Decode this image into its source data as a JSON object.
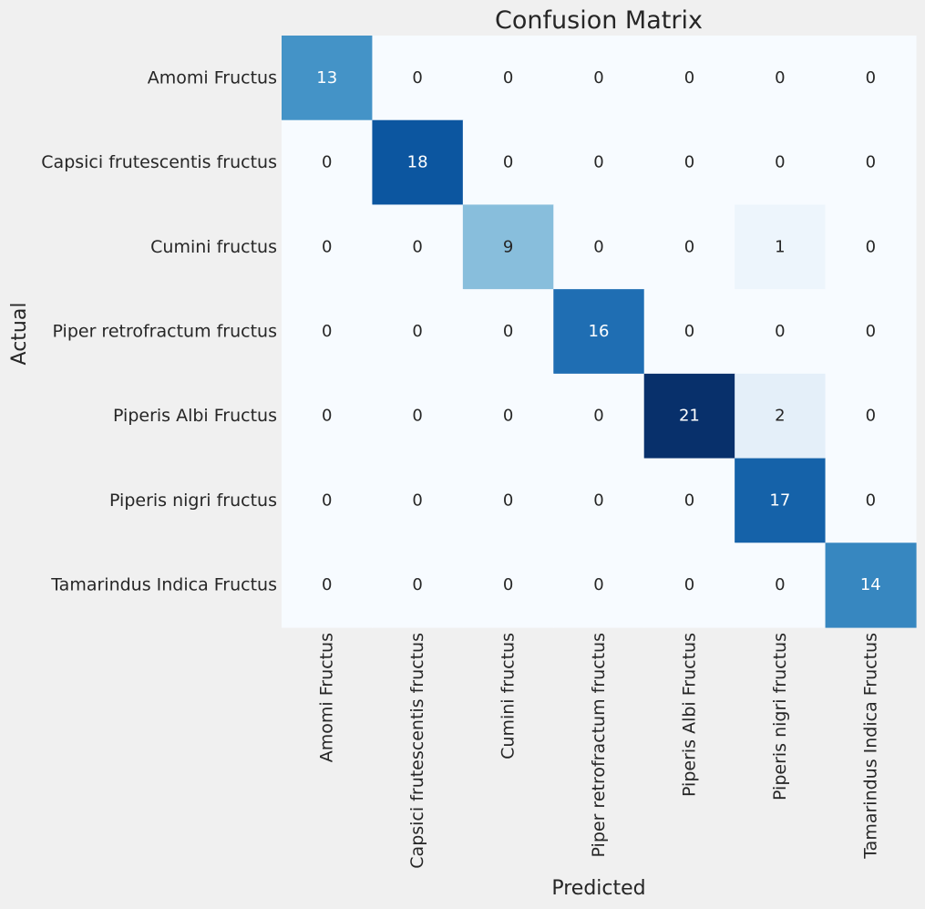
{
  "chart_data": {
    "type": "heatmap",
    "title": "Confusion Matrix",
    "xlabel": "Predicted",
    "ylabel": "Actual",
    "x_categories": [
      "Amomi Fructus",
      "Capsici frutescentis fructus",
      "Cumini fructus",
      "Piper retrofractum fructus",
      "Piperis Albi Fructus",
      "Piperis nigri fructus",
      "Tamarindus Indica Fructus"
    ],
    "y_categories": [
      "Amomi Fructus",
      "Capsici frutescentis fructus",
      "Cumini fructus",
      "Piper retrofractum fructus",
      "Piperis Albi Fructus",
      "Piperis nigri fructus",
      "Tamarindus Indica Fructus"
    ],
    "values": [
      [
        13,
        0,
        0,
        0,
        0,
        0,
        0
      ],
      [
        0,
        18,
        0,
        0,
        0,
        0,
        0
      ],
      [
        0,
        0,
        9,
        0,
        0,
        1,
        0
      ],
      [
        0,
        0,
        0,
        16,
        0,
        0,
        0
      ],
      [
        0,
        0,
        0,
        0,
        21,
        2,
        0
      ],
      [
        0,
        0,
        0,
        0,
        0,
        17,
        0
      ],
      [
        0,
        0,
        0,
        0,
        0,
        0,
        14
      ]
    ],
    "colormap": "Blues",
    "color_range": [
      0,
      21
    ],
    "colorbar": false,
    "grid": false
  },
  "colors": {
    "background": "#f0f0f0",
    "text_dark": "#262626",
    "text_light": "#ffffff"
  }
}
